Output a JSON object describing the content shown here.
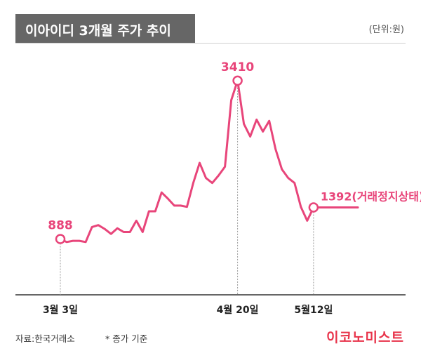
{
  "title": "이아이디 3개월 주가 추이",
  "unit": "(단위:원)",
  "footer": {
    "source": "자료:한국거래소",
    "note": "* 종가 기준"
  },
  "brand": "이코노미스트",
  "colors": {
    "line": "#e8457a",
    "title_bg": "#666666",
    "axis": "#333333"
  },
  "chart_data": {
    "type": "line",
    "title": "이아이디 3개월 주가 추이",
    "unit": "(단위:원)",
    "xlabels": [
      "3월 3일",
      "4월 20일",
      "5월12일"
    ],
    "ylim": [
      0,
      3800
    ],
    "series": [
      {
        "values": [
          888,
          840,
          860,
          860,
          840,
          1080,
          1110,
          1050,
          970,
          1060,
          1000,
          1000,
          1180,
          1000,
          1330,
          1330,
          1630,
          1530,
          1420,
          1420,
          1400,
          1780,
          2100,
          1860,
          1780,
          1900,
          2040,
          3100,
          3410,
          2720,
          2520,
          2790,
          2600,
          2770,
          2320,
          2000,
          1860,
          1780,
          1400,
          1180,
          1392,
          1392,
          1392,
          1392,
          1392,
          1392,
          1392,
          1392
        ]
      }
    ],
    "annotations": [
      {
        "label": "888",
        "index": 0,
        "value": 888
      },
      {
        "label": "3410",
        "index": 28,
        "value": 3410
      },
      {
        "label": "1392(거래정지상태)",
        "index": 40,
        "value": 1392
      }
    ]
  }
}
